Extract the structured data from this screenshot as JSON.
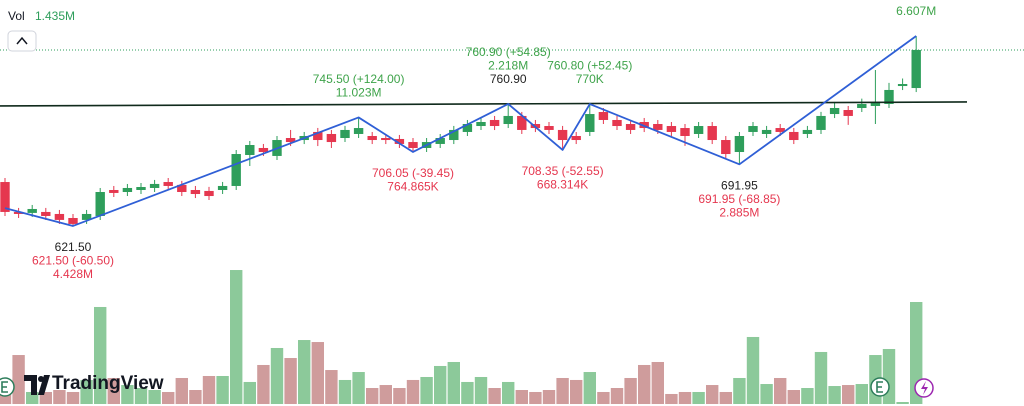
{
  "chart_data": {
    "type": "candlestick",
    "ylim": [
      582.6,
      879.7
    ],
    "up_color": "#2e9e5b",
    "down_color": "#e5374f",
    "candles": [
      [
        671.7,
        676.3,
        632.9,
        637.5
      ],
      [
        637.5,
        642.1,
        630.6,
        635.2
      ],
      [
        636.4,
        645.5,
        631.8,
        640.9
      ],
      [
        637.5,
        642.1,
        628.3,
        632.9
      ],
      [
        635.2,
        639.8,
        623.8,
        628.4
      ],
      [
        630.6,
        635.2,
        621.5,
        623.8
      ],
      [
        628.4,
        639.8,
        623.8,
        635.2
      ],
      [
        632.9,
        664.9,
        628.3,
        660.3
      ],
      [
        662.6,
        667.2,
        654.6,
        659.2
      ],
      [
        660.3,
        669.5,
        655.7,
        664.9
      ],
      [
        662.6,
        670.6,
        658.0,
        666.0
      ],
      [
        664.9,
        674.1,
        660.3,
        669.5
      ],
      [
        671.7,
        676.3,
        662.6,
        667.2
      ],
      [
        668.4,
        673.0,
        655.7,
        660.3
      ],
      [
        662.6,
        667.2,
        653.4,
        658.0
      ],
      [
        661.5,
        666.1,
        651.1,
        655.7
      ],
      [
        662.6,
        671.8,
        658.0,
        667.2
      ],
      [
        667.2,
        708.3,
        662.6,
        703.7
      ],
      [
        702.6,
        718.6,
        690.0,
        714.0
      ],
      [
        710.6,
        715.2,
        701.4,
        706.0
      ],
      [
        701.5,
        724.3,
        696.9,
        719.7
      ],
      [
        722.0,
        731.2,
        712.8,
        717.4
      ],
      [
        719.7,
        728.9,
        715.1,
        724.3
      ],
      [
        728.9,
        733.5,
        712.8,
        719.7
      ],
      [
        726.6,
        731.2,
        710.6,
        717.4
      ],
      [
        722.0,
        735.8,
        717.4,
        731.2
      ],
      [
        726.6,
        744.9,
        722.0,
        733.4
      ],
      [
        724.3,
        728.9,
        715.1,
        719.7
      ],
      [
        722.0,
        726.6,
        715.1,
        719.7
      ],
      [
        720.9,
        725.5,
        710.6,
        715.2
      ],
      [
        717.4,
        722.0,
        706.0,
        710.6
      ],
      [
        710.6,
        722.0,
        706.0,
        717.4
      ],
      [
        715.2,
        726.6,
        710.6,
        722.0
      ],
      [
        719.7,
        735.8,
        715.1,
        731.2
      ],
      [
        728.9,
        742.6,
        724.3,
        738.0
      ],
      [
        735.7,
        744.9,
        731.1,
        740.3
      ],
      [
        742.6,
        747.2,
        731.1,
        735.7
      ],
      [
        738.0,
        760.9,
        733.4,
        747.2
      ],
      [
        747.2,
        751.8,
        726.6,
        731.2
      ],
      [
        738.0,
        742.6,
        728.8,
        733.4
      ],
      [
        735.7,
        740.3,
        726.6,
        731.2
      ],
      [
        731.2,
        735.8,
        708.3,
        719.7
      ],
      [
        724.3,
        728.9,
        715.1,
        719.7
      ],
      [
        728.9,
        760.9,
        724.3,
        749.4
      ],
      [
        751.7,
        756.3,
        738.0,
        742.6
      ],
      [
        742.6,
        747.2,
        731.1,
        735.7
      ],
      [
        738.0,
        742.6,
        726.6,
        731.2
      ],
      [
        740.3,
        744.9,
        728.8,
        733.4
      ],
      [
        738.0,
        742.6,
        726.6,
        731.2
      ],
      [
        735.7,
        740.3,
        724.3,
        728.9
      ],
      [
        733.4,
        738.0,
        713.0,
        724.3
      ],
      [
        726.6,
        740.3,
        722.0,
        735.7
      ],
      [
        735.7,
        740.3,
        715.1,
        719.7
      ],
      [
        719.7,
        724.3,
        699.1,
        703.7
      ],
      [
        706.0,
        728.9,
        692.3,
        724.3
      ],
      [
        728.9,
        740.3,
        724.3,
        735.7
      ],
      [
        726.6,
        735.8,
        722.0,
        731.2
      ],
      [
        733.4,
        738.0,
        724.3,
        728.9
      ],
      [
        728.9,
        733.5,
        715.1,
        719.7
      ],
      [
        726.6,
        735.8,
        722.0,
        731.2
      ],
      [
        731.2,
        751.8,
        726.6,
        747.2
      ],
      [
        749.4,
        763.2,
        744.8,
        756.3
      ],
      [
        754.0,
        758.6,
        737.0,
        747.2
      ],
      [
        756.3,
        767.0,
        751.7,
        760.9
      ],
      [
        758.6,
        799.7,
        738.0,
        763.2
      ],
      [
        760.9,
        785.0,
        756.3,
        776.9
      ],
      [
        781.4,
        790.0,
        776.8,
        783.7
      ],
      [
        779.1,
        838.6,
        774.5,
        822.6
      ]
    ],
    "volume": {
      "label": "Vol",
      "last_label": "1.435M",
      "ylim": [
        0,
        2026000
      ],
      "up_color": "#8cc99a",
      "down_color": "#cf9c9c",
      "values": [
        253000,
        689000,
        169000,
        169000,
        197000,
        169000,
        338000,
        1365000,
        366000,
        267000,
        225000,
        197000,
        169000,
        366000,
        197000,
        394000,
        394000,
        1885000,
        310000,
        549000,
        788000,
        647000,
        900000,
        872000,
        478000,
        338000,
        450000,
        225000,
        267000,
        225000,
        338000,
        380000,
        535000,
        591000,
        310000,
        380000,
        225000,
        310000,
        197000,
        169000,
        197000,
        366000,
        338000,
        450000,
        169000,
        225000,
        366000,
        549000,
        591000,
        141000,
        169000,
        169000,
        267000,
        169000,
        366000,
        943000,
        281000,
        366000,
        197000,
        225000,
        732000,
        253000,
        267000,
        281000,
        689000,
        774000,
        28000,
        1435000
      ]
    },
    "resistance": {
      "values": [
        758.6,
        763.2
      ],
      "color": "#102a1c"
    },
    "zigzag": {
      "color": "#2f5fd6",
      "points": [
        {
          "x": 0,
          "value": 641.9
        },
        {
          "x": 5,
          "value": 621.5,
          "side": "below",
          "labels": [
            {
              "text": "621.50",
              "color": "#222222"
            },
            {
              "text": "621.50 (-60.50)",
              "color": "#e5374f"
            },
            {
              "text": "4.428M",
              "color": "#e5374f"
            }
          ]
        },
        {
          "x": 26,
          "value": 745.5,
          "side": "above",
          "labels": [
            {
              "text": "745.50 (+124.00)",
              "color": "#3ea34a"
            },
            {
              "text": "11.023M",
              "color": "#3ea34a"
            }
          ]
        },
        {
          "x": 30,
          "value": 706.05,
          "side": "below",
          "labels": [
            {
              "text": "706.05 (-39.45)",
              "color": "#e5374f"
            },
            {
              "text": "764.865K",
              "color": "#e5374f"
            }
          ]
        },
        {
          "x": 37,
          "value": 760.9,
          "side": "above",
          "labels": [
            {
              "text": "760.90 (+54.85)",
              "color": "#3ea34a"
            },
            {
              "text": "2.218M",
              "color": "#3ea34a"
            },
            {
              "text": "760.90",
              "color": "#222222"
            }
          ]
        },
        {
          "x": 41,
          "value": 708.35,
          "side": "below",
          "labels": [
            {
              "text": "708.35 (-52.55)",
              "color": "#e5374f"
            },
            {
              "text": "668.314K",
              "color": "#e5374f"
            }
          ]
        },
        {
          "x": 43,
          "value": 760.8,
          "side": "above",
          "labels": [
            {
              "text": "760.80 (+52.45)",
              "color": "#3ea34a"
            },
            {
              "text": "770K",
              "color": "#3ea34a"
            }
          ]
        },
        {
          "x": 54,
          "value": 691.95,
          "side": "below",
          "labels": [
            {
              "text": "691.95",
              "color": "#222222"
            },
            {
              "text": "691.95 (-68.85)",
              "color": "#e5374f"
            },
            {
              "text": "2.885M",
              "color": "#e5374f"
            }
          ]
        },
        {
          "x": 67,
          "value": 838.6,
          "side": "above",
          "labels": [
            {
              "text": "6.607M",
              "color": "#3ea34a"
            }
          ]
        }
      ]
    },
    "brand": "TradingView"
  }
}
